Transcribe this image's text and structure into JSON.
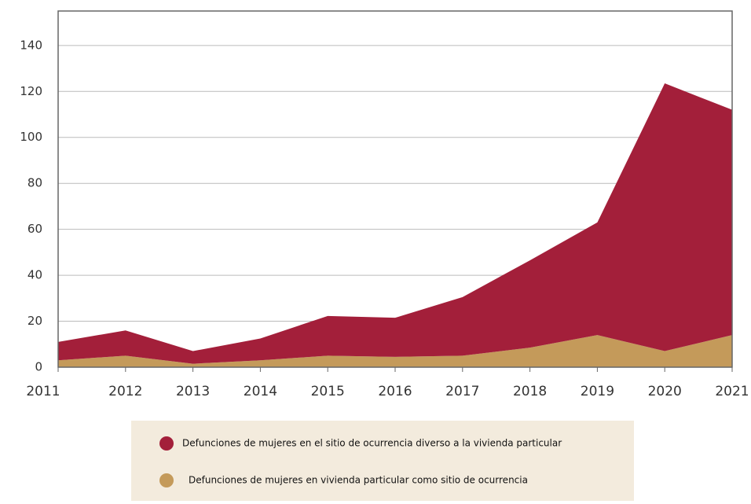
{
  "chart_data": {
    "type": "stacked_area",
    "categories": [
      "2011",
      "2012",
      "2013",
      "2014",
      "2015",
      "2016",
      "2017",
      "2018",
      "2019",
      "2020",
      "2021"
    ],
    "series": [
      {
        "name": "Defunciones de mujeres en el sitio de ocurrencia diverso a la vivienda particular",
        "color": "#a31f3a",
        "values": [
          8,
          11,
          5.5,
          9.5,
          17.3,
          17,
          25.5,
          38,
          49,
          116.5,
          98
        ]
      },
      {
        "name": "Defunciones de mujeres en vivienda particular como sitio de ocurrencia",
        "color": "#c49a5a",
        "values": [
          3,
          5,
          1.5,
          3,
          5,
          4.5,
          5,
          8.5,
          14,
          7,
          14
        ]
      }
    ],
    "ylim": [
      0,
      155
    ],
    "yticks": [
      0,
      20,
      40,
      60,
      80,
      100,
      120,
      140
    ],
    "grid": true
  }
}
